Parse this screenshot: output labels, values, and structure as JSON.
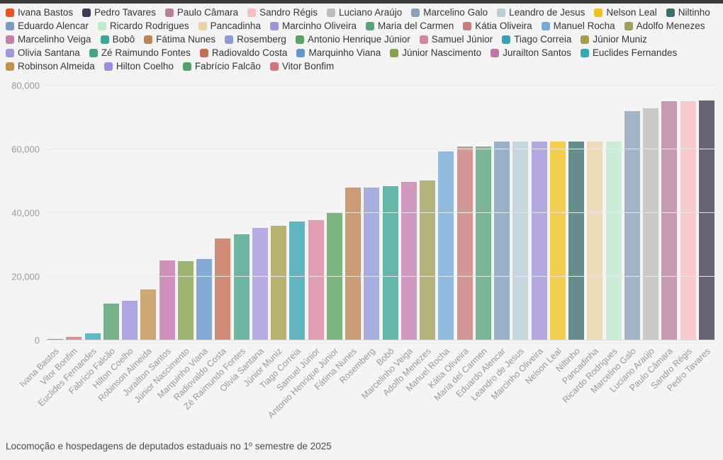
{
  "page": {
    "background": "#f4f4f4",
    "topbar_color": "#3c3c3c"
  },
  "chart_data": {
    "type": "bar",
    "title": "",
    "xlabel": "",
    "ylabel": "",
    "caption": "Locomoção e hospedagens de deputados estaduais no 1º semestre de 2025",
    "grid": true,
    "legend_position": "top",
    "ylim": [
      0,
      80000
    ],
    "yticks": [
      0,
      20000,
      40000,
      60000,
      80000
    ],
    "ytick_labels": [
      "0",
      "20,000",
      "40,000",
      "60,000",
      "80,000"
    ],
    "legend": [
      {
        "name": "Ivana Bastos",
        "color": "#e8541e"
      },
      {
        "name": "Pedro Tavares",
        "color": "#413a55"
      },
      {
        "name": "Paulo Câmara",
        "color": "#b8809f"
      },
      {
        "name": "Sandro Régis",
        "color": "#f9bdc1"
      },
      {
        "name": "Luciano Araújo",
        "color": "#bdbdbd"
      },
      {
        "name": "Marcelino Galo",
        "color": "#8ca1b8"
      },
      {
        "name": "Leandro de Jesus",
        "color": "#b9cdd6"
      },
      {
        "name": "Nelson Leal",
        "color": "#f2c21c"
      },
      {
        "name": "Niltinho",
        "color": "#3c6f6c"
      },
      {
        "name": "Eduardo Alencar",
        "color": "#7d9cbb"
      },
      {
        "name": "Ricardo Rodrigues",
        "color": "#c0e9ce"
      },
      {
        "name": "Pancadinha",
        "color": "#e9d4a5"
      },
      {
        "name": "Marcinho Oliveira",
        "color": "#a292dc"
      },
      {
        "name": "Maria del Carmen",
        "color": "#57a37a"
      },
      {
        "name": "Kátia Oliveira",
        "color": "#cb7c7c"
      },
      {
        "name": "Manuel Rocha",
        "color": "#73aad9"
      },
      {
        "name": "Adolfo Menezes",
        "color": "#9f9f58"
      },
      {
        "name": "Marcelinho Veiga",
        "color": "#c67fad"
      },
      {
        "name": "Bobô",
        "color": "#3aa795"
      },
      {
        "name": "Fátima Nunes",
        "color": "#bd8352"
      },
      {
        "name": "Rosemberg",
        "color": "#8e9ad8"
      },
      {
        "name": "Antonio Henrique Júnior",
        "color": "#5ba361"
      },
      {
        "name": "Samuel Júnior",
        "color": "#d8869d"
      },
      {
        "name": "Tiago Correia",
        "color": "#38a3af"
      },
      {
        "name": "Júnior Muniz",
        "color": "#a79f48"
      },
      {
        "name": "Olivia Santana",
        "color": "#a695dc"
      },
      {
        "name": "Zé Raimundo Fontes",
        "color": "#48a389"
      },
      {
        "name": "Radiovaldo Costa",
        "color": "#c66e52"
      },
      {
        "name": "Marquinho Viana",
        "color": "#6396cd"
      },
      {
        "name": "Júnior Nascimento",
        "color": "#88a14b"
      },
      {
        "name": "Jurailton Santos",
        "color": "#c473a9"
      },
      {
        "name": "Euclides Fernandes",
        "color": "#35a9b5"
      },
      {
        "name": "Robinson Almeida",
        "color": "#c1914f"
      },
      {
        "name": "Hilton Coelho",
        "color": "#9c8ede"
      },
      {
        "name": "Fabrício Falcão",
        "color": "#52a06e"
      },
      {
        "name": "Vitor Bonfim",
        "color": "#d0757f"
      }
    ],
    "categories": [
      "Ivana Bastos",
      "Vitor Bonfim",
      "Euclides Fernandes",
      "Fabrício Falcão",
      "Hilton Coelho",
      "Robinson Almeida",
      "Jurailton Santos",
      "Júnior Nascimento",
      "Marquinho Viana",
      "Radiovaldo Costa",
      "Zé Raimundo Fontes",
      "Olivia Santana",
      "Júnior Muniz",
      "Tiago Correia",
      "Samuel Júnior",
      "Antonio Henrique Júnior",
      "Fátima Nunes",
      "Rosemberg",
      "Bobô",
      "Marcelinho Veiga",
      "Adolfo Menezes",
      "Manuel Rocha",
      "Kátia Oliveira",
      "Maria del Carmen",
      "Eduardo Alencar",
      "Leandro de Jesus",
      "Marcinho Oliveira",
      "Nelson Leal",
      "Niltinho",
      "Pancadinha",
      "Ricardo Rodrigues",
      "Marcelino Galo",
      "Luciano Araújo",
      "Paulo Câmara",
      "Sandro Régis",
      "Pedro Tavares"
    ],
    "values": [
      400,
      1100,
      2300,
      11500,
      12400,
      15900,
      25100,
      25000,
      25500,
      31900,
      33400,
      35300,
      36000,
      37400,
      37700,
      39900,
      48100,
      48000,
      48500,
      49800,
      50200,
      59400,
      60800,
      61000,
      62500,
      62500,
      62500,
      62500,
      62500,
      62500,
      62500,
      72000,
      72900,
      75100,
      75100,
      75400
    ]
  }
}
